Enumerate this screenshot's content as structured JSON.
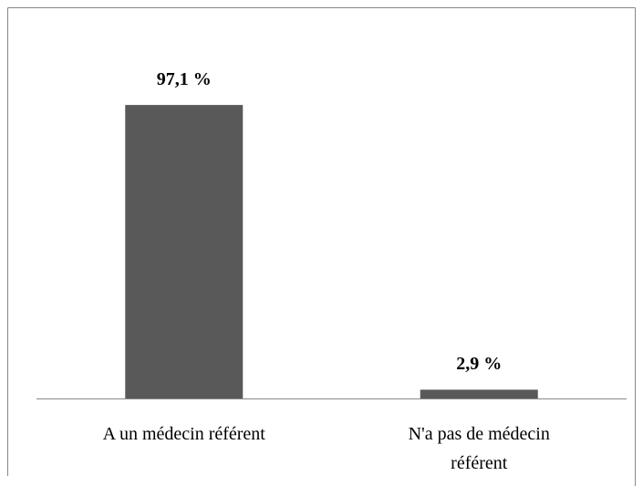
{
  "chart_data": {
    "type": "bar",
    "categories": [
      "A un médecin référent",
      "N'a pas de médecin référent"
    ],
    "values": [
      97.1,
      2.9
    ],
    "value_labels": [
      "97,1 %",
      "2,9 %"
    ],
    "color": "#595959"
  }
}
